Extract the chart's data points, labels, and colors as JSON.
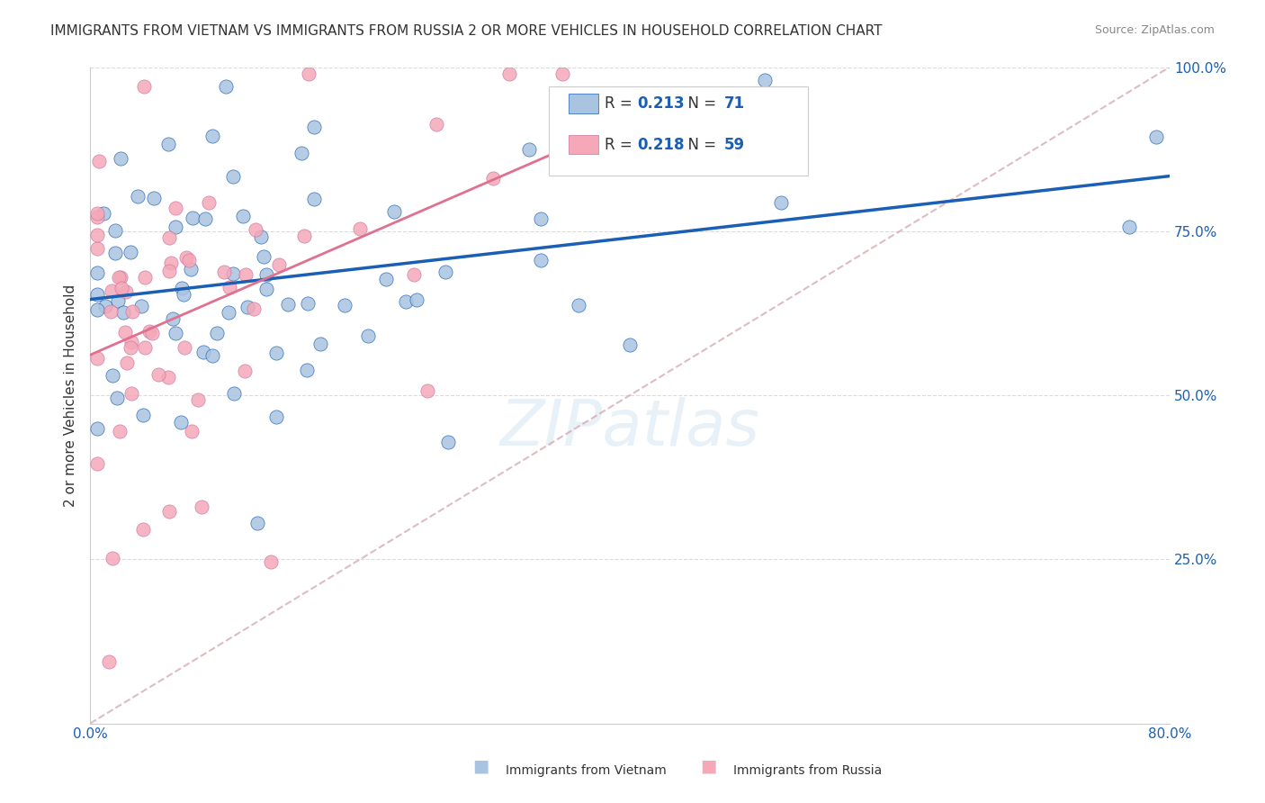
{
  "title": "IMMIGRANTS FROM VIETNAM VS IMMIGRANTS FROM RUSSIA 2 OR MORE VEHICLES IN HOUSEHOLD CORRELATION CHART",
  "source": "Source: ZipAtlas.com",
  "ylabel": "2 or more Vehicles in Household",
  "xlim": [
    0.0,
    0.8
  ],
  "ylim": [
    0.0,
    1.0
  ],
  "legend_r1": "0.213",
  "legend_n1": "71",
  "legend_r2": "0.218",
  "legend_n2": "59",
  "color_vietnam": "#a8c4e0",
  "color_russia": "#f4a8b8",
  "color_line_vietnam": "#1a5fb4",
  "color_line_russia": "#e07090",
  "color_diagonal": "#d0a0a8",
  "watermark": "ZIPatlas"
}
